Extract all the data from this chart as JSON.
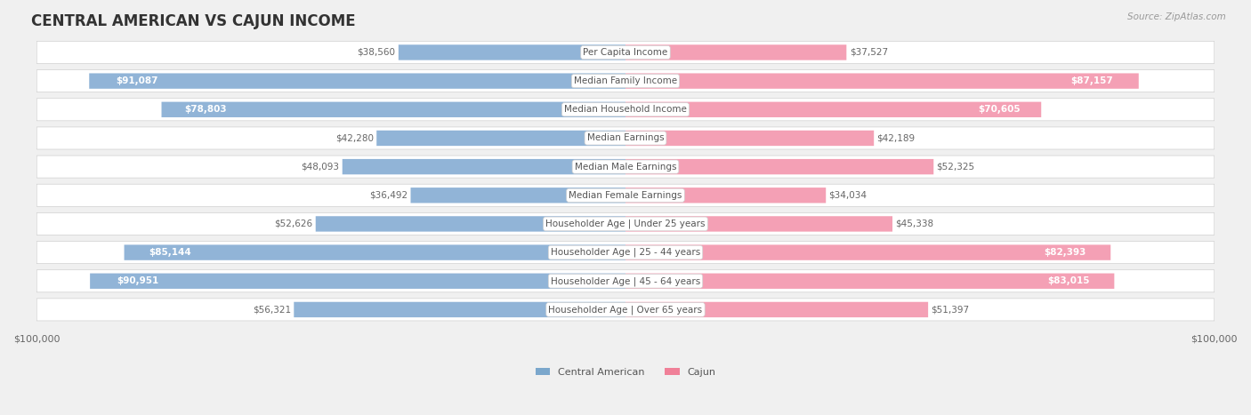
{
  "title": "CENTRAL AMERICAN VS CAJUN INCOME",
  "source": "Source: ZipAtlas.com",
  "categories": [
    "Per Capita Income",
    "Median Family Income",
    "Median Household Income",
    "Median Earnings",
    "Median Male Earnings",
    "Median Female Earnings",
    "Householder Age | Under 25 years",
    "Householder Age | 25 - 44 years",
    "Householder Age | 45 - 64 years",
    "Householder Age | Over 65 years"
  ],
  "central_american": [
    38560,
    91087,
    78803,
    42280,
    48093,
    36492,
    52626,
    85144,
    90951,
    56321
  ],
  "cajun": [
    37527,
    87157,
    70605,
    42189,
    52325,
    34034,
    45338,
    82393,
    83015,
    51397
  ],
  "max_value": 100000,
  "blue_color": "#91b4d7",
  "blue_dark_color": "#6a9fc0",
  "pink_color": "#f4a0b5",
  "pink_dark_color": "#e07a96",
  "blue_legend": "#7ba7cc",
  "pink_legend": "#f08098",
  "bg_color": "#f0f0f0",
  "row_bg_color": "#f5f5f5",
  "row_border_color": "#d0d0d0",
  "label_color_dark": "#666666",
  "label_color_white": "#ffffff",
  "threshold_white_label": 60000,
  "center_label_bg": "#ffffff",
  "center_label_color": "#555555",
  "title_color": "#333333",
  "xlabel_color": "#666666",
  "legend_label_color": "#555555"
}
